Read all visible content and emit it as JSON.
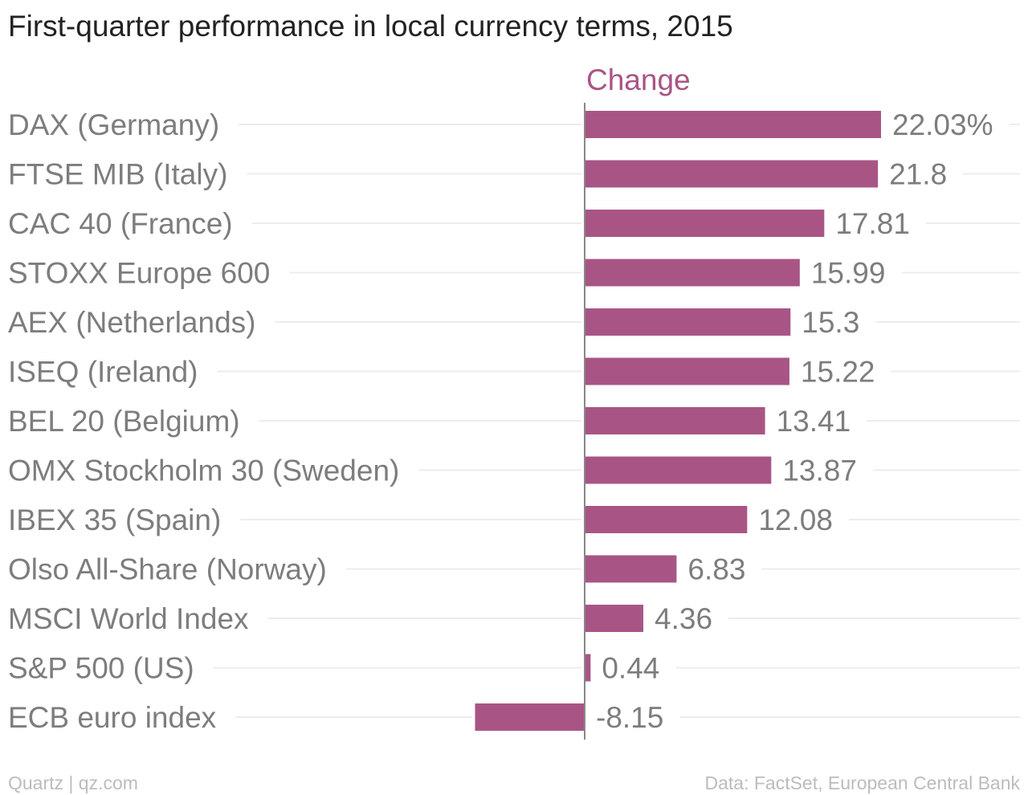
{
  "chart_data": {
    "type": "bar",
    "orientation": "horizontal",
    "title": "First-quarter performance in local currency terms, 2015",
    "series": [
      {
        "name": "Change",
        "values": [
          22.03,
          21.8,
          17.81,
          15.99,
          15.3,
          15.22,
          13.41,
          13.87,
          12.08,
          6.83,
          4.36,
          0.44,
          -8.15
        ],
        "labels": [
          "22.03%",
          "21.8",
          "17.81",
          "15.99",
          "15.3",
          "15.22",
          "13.41",
          "13.87",
          "12.08",
          "6.83",
          "4.36",
          "0.44",
          "-8.15"
        ]
      }
    ],
    "categories": [
      "DAX (Germany)",
      "FTSE MIB (Italy)",
      "CAC 40 (France)",
      "STOXX Europe 600",
      "AEX (Netherlands)",
      "ISEQ (Ireland)",
      "BEL 20 (Belgium)",
      "OMX Stockholm 30 (Sweden)",
      "IBEX 35 (Spain)",
      "Olso All-Share (Norway)",
      "MSCI World Index",
      "S&P 500 (US)",
      "ECB euro index"
    ],
    "xlim": [
      -8.15,
      22.03
    ],
    "grid": true
  },
  "colors": {
    "bar": "#a85585",
    "series_header": "#a85585",
    "category_label": "#7d7d7d",
    "value_label": "#7d7d7d",
    "gridline": "#ececec",
    "axis_line": "#888888"
  },
  "footer": {
    "left": "Quartz | qz.com",
    "right": "Data: FactSet, European Central Bank"
  }
}
